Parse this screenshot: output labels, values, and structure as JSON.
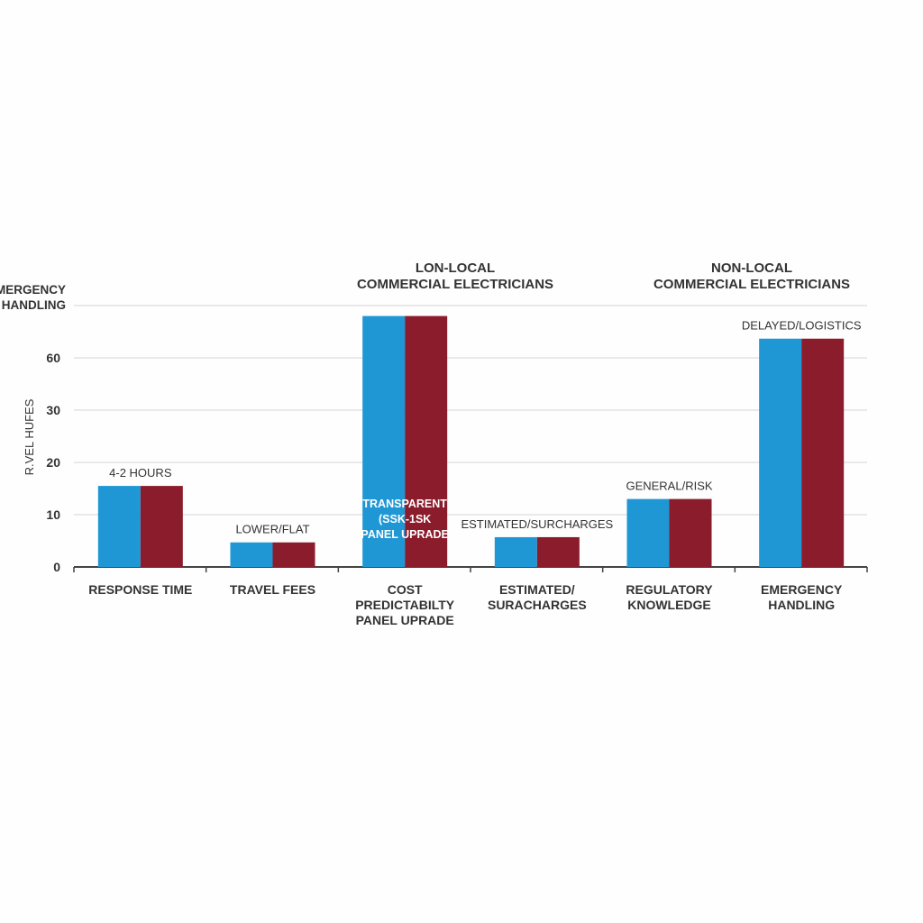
{
  "chart_data": {
    "type": "bar",
    "title": "",
    "ylabel": "R.VEL HUFES",
    "xlabel": "",
    "y_ticks": [
      "0",
      "10",
      "20",
      "30",
      "60"
    ],
    "y_top_label": [
      "EMERGENCY",
      "HANDLING"
    ],
    "ylim": [
      0,
      90
    ],
    "grid": true,
    "group_headers": [
      [
        "LON-LOCAL",
        "COMMERCIAL ELECTRICIANS"
      ],
      [
        "NON-LOCAL",
        "COMMERCIAL ELECTRICIANS"
      ]
    ],
    "categories": [
      [
        "RESPONSE TIME"
      ],
      [
        "TRAVEL FEES"
      ],
      [
        "COST",
        "PREDICTABILTY",
        "PANEL UPRADE"
      ],
      [
        "ESTIMATED/",
        "SURACHARGES"
      ],
      [
        "REGULATORY",
        "KNOWLEDGE"
      ],
      [
        "EMERGENCY",
        "HANDLING"
      ]
    ],
    "annotations": [
      [
        "4-2 HOURS"
      ],
      [
        "LOWER/FLAT"
      ],
      [
        "TRANSPARENT",
        "(SSK-1SK",
        "PANEL UPRADE"
      ],
      [
        "ESTIMATED/SURCHARGES"
      ],
      [
        "GENERAL/RISK"
      ],
      [
        "DELAYED/LOGISTICS"
      ]
    ],
    "series": [
      {
        "color": "#1f97d4",
        "values": [
          15.5,
          4.7,
          84,
          5.7,
          13,
          71
        ]
      },
      {
        "color": "#8b1c2b",
        "values": [
          15.5,
          4.7,
          84,
          5.7,
          13,
          71
        ]
      }
    ]
  }
}
